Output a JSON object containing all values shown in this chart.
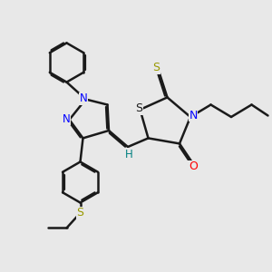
{
  "bg_color": "#e8e8e8",
  "bond_color": "#1a1a1a",
  "N_color": "#0000ff",
  "O_color": "#ff0000",
  "S_color": "#999900",
  "H_color": "#008080",
  "line_width": 1.8,
  "figsize": [
    3.0,
    3.0
  ],
  "dpi": 100,
  "xlim": [
    0,
    10
  ],
  "ylim": [
    0,
    10
  ]
}
